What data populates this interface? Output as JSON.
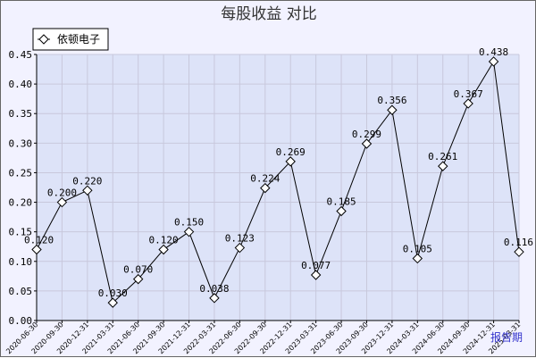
{
  "chart_data": {
    "type": "line",
    "title": "每股收益 对比",
    "xlabel": "报告期",
    "ylabel": "",
    "ylim": [
      0,
      0.45
    ],
    "yticks": [
      "0.00",
      "0.05",
      "0.10",
      "0.15",
      "0.20",
      "0.25",
      "0.30",
      "0.35",
      "0.40",
      "0.45"
    ],
    "grid": true,
    "legend_position": "top-left",
    "categories": [
      "2020-06-30",
      "2020-09-30",
      "2020-12-31",
      "2021-03-31",
      "2021-06-30",
      "2021-09-30",
      "2021-12-31",
      "2022-03-31",
      "2022-06-30",
      "2022-09-30",
      "2022-12-31",
      "2023-03-31",
      "2023-06-30",
      "2023-09-30",
      "2023-12-31",
      "2024-03-31",
      "2024-06-30",
      "2024-09-30",
      "2024-12-31",
      "2025-03-31"
    ],
    "series": [
      {
        "name": "依顿电子",
        "values": [
          0.12,
          0.2,
          0.22,
          0.03,
          0.07,
          0.12,
          0.15,
          0.038,
          0.123,
          0.224,
          0.269,
          0.077,
          0.185,
          0.299,
          0.356,
          0.105,
          0.261,
          0.367,
          0.438,
          0.116
        ],
        "labels": [
          "0.120",
          "0.200",
          "0.220",
          "0.030",
          "0.070",
          "0.120",
          "0.150",
          "0.038",
          "0.123",
          "0.224",
          "0.269",
          "0.077",
          "0.185",
          "0.299",
          "0.356",
          "0.105",
          "0.261",
          "0.367",
          "0.438",
          "0.116"
        ]
      }
    ],
    "colors": {
      "line": "#000000",
      "grid": "#c8c8dc",
      "plot_bg": "#dde3f8",
      "outer_bg": "#f2f2ff",
      "axis_title": "#3333cc"
    }
  }
}
